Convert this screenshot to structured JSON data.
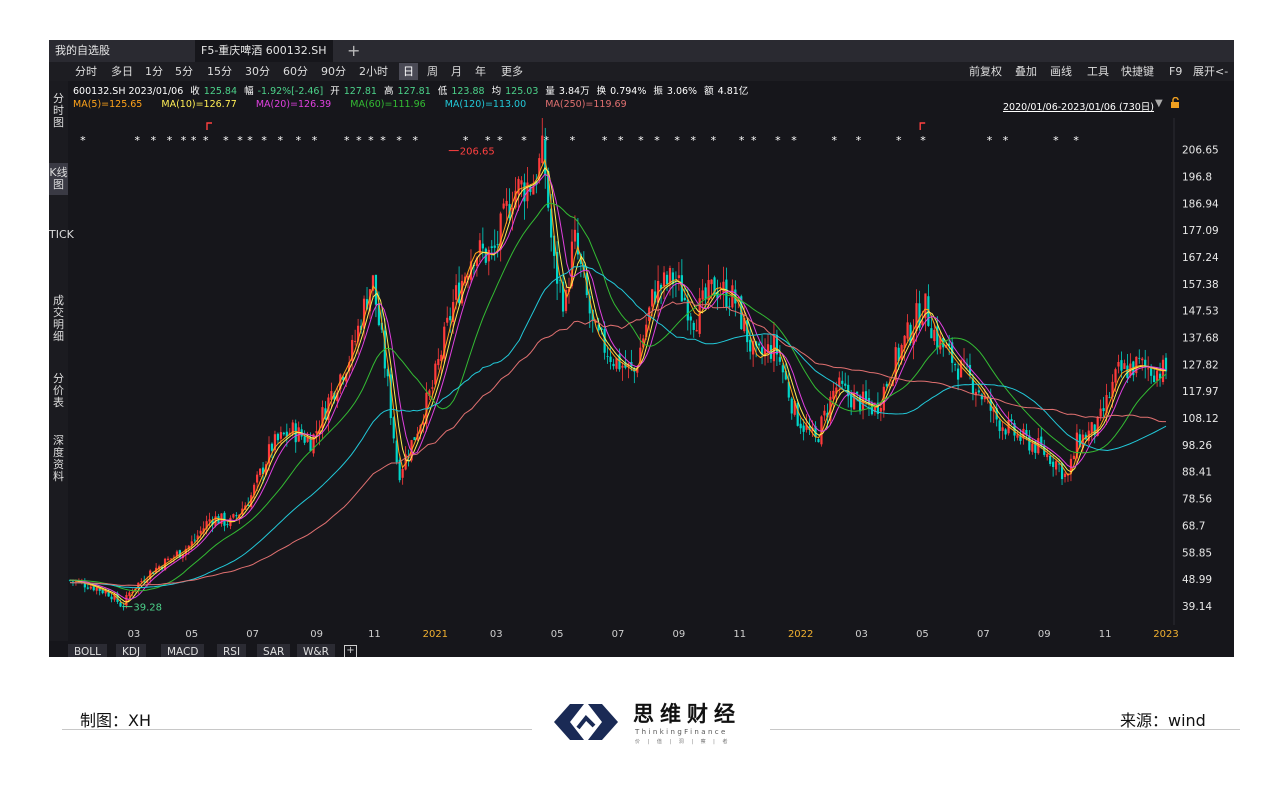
{
  "window": {
    "tabs": [
      {
        "label": "我的自选股",
        "active": false
      },
      {
        "label": "F5-重庆啤酒 600132.SH",
        "active": true
      }
    ],
    "add_tab_icon": "plus-icon"
  },
  "toolbar": {
    "periods": [
      "分时",
      "多日",
      "1分",
      "5分",
      "15分",
      "30分",
      "60分",
      "90分",
      "2小时",
      "日",
      "周",
      "月",
      "年",
      "更多"
    ],
    "active_period": "日",
    "right_tools": [
      "前复权",
      "叠加",
      "画线",
      "工具",
      "快捷键",
      "F9",
      "展开<-"
    ]
  },
  "sidebar": {
    "tabs": [
      {
        "label": "分时图",
        "active": false
      },
      {
        "label": "K线图",
        "active": true
      },
      {
        "label": "TICK",
        "active": false
      },
      {
        "label": "成交明细",
        "active": false
      },
      {
        "label": "分价表",
        "active": false
      },
      {
        "label": "深度资料",
        "active": false
      }
    ]
  },
  "quote": {
    "code_date": "600132.SH 2023/01/06",
    "close_label": "收",
    "close": "125.84",
    "change_label": "幅",
    "change": "-1.92%[-2.46]",
    "open_label": "开",
    "open": "127.81",
    "high_label": "高",
    "high": "127.81",
    "low_label": "低",
    "low": "123.88",
    "avg_label": "均",
    "avg": "125.03",
    "volume_label": "量",
    "volume": "3.84万",
    "turnover_label": "换",
    "turnover": "0.794%",
    "amplitude_label": "振",
    "amplitude": "3.06%",
    "amount_label": "额",
    "amount": "4.81亿"
  },
  "ma_legend": [
    {
      "label": "MA(5)=125.65",
      "color": "#ffa31a"
    },
    {
      "label": "MA(10)=126.77",
      "color": "#ffee55"
    },
    {
      "label": "MA(20)=126.39",
      "color": "#e040e0"
    },
    {
      "label": "MA(60)=111.96",
      "color": "#33bb33"
    },
    {
      "label": "MA(120)=113.00",
      "color": "#22c8d8"
    },
    {
      "label": "MA(250)=119.69",
      "color": "#e07070"
    }
  ],
  "date_range": "2020/01/06-2023/01/06 (730日)",
  "colors": {
    "up": "#ff3b3b",
    "down": "#00d6c8",
    "background": "#16161b"
  },
  "chart_data": {
    "type": "candlestick",
    "x_ticks": [
      {
        "label": "03",
        "year": false
      },
      {
        "label": "05",
        "year": false
      },
      {
        "label": "07",
        "year": false
      },
      {
        "label": "09",
        "year": false
      },
      {
        "label": "11",
        "year": false
      },
      {
        "label": "2021",
        "year": true
      },
      {
        "label": "03",
        "year": false
      },
      {
        "label": "05",
        "year": false
      },
      {
        "label": "07",
        "year": false
      },
      {
        "label": "09",
        "year": false
      },
      {
        "label": "11",
        "year": false
      },
      {
        "label": "2022",
        "year": true
      },
      {
        "label": "03",
        "year": false
      },
      {
        "label": "05",
        "year": false
      },
      {
        "label": "07",
        "year": false
      },
      {
        "label": "09",
        "year": false
      },
      {
        "label": "11",
        "year": false
      },
      {
        "label": "2023",
        "year": true
      }
    ],
    "y_ticks": [
      "206.65",
      "196.8",
      "186.94",
      "177.09",
      "167.24",
      "157.38",
      "147.53",
      "137.68",
      "127.82",
      "117.97",
      "108.12",
      "98.26",
      "88.41",
      "78.56",
      "68.7",
      "58.85",
      "48.99",
      "39.14"
    ],
    "ylim": [
      34,
      212
    ],
    "annotations": [
      {
        "label": "39.28",
        "month": 2.6,
        "value": 39.28,
        "color": "#4cd28a"
      },
      {
        "label": "206.65",
        "month": 18.8,
        "value": 206.65,
        "color": "#ff4040"
      }
    ],
    "close_path": [
      [
        0,
        49
      ],
      [
        1,
        47
      ],
      [
        2,
        44
      ],
      [
        2.6,
        39.3
      ],
      [
        3,
        45
      ],
      [
        4,
        52
      ],
      [
        5,
        57
      ],
      [
        6,
        62
      ],
      [
        7,
        72
      ],
      [
        8,
        70
      ],
      [
        9,
        80
      ],
      [
        10,
        98
      ],
      [
        11,
        104
      ],
      [
        12,
        100
      ],
      [
        13,
        118
      ],
      [
        14,
        133
      ],
      [
        15,
        160
      ],
      [
        15.7,
        125
      ],
      [
        16.3,
        88
      ],
      [
        17,
        100
      ],
      [
        18,
        120
      ],
      [
        19,
        150
      ],
      [
        20,
        170
      ],
      [
        21,
        168
      ],
      [
        22,
        192
      ],
      [
        23,
        195
      ],
      [
        23.5,
        206
      ],
      [
        24,
        165
      ],
      [
        24.6,
        150
      ],
      [
        25,
        175
      ],
      [
        26,
        140
      ],
      [
        27,
        130
      ],
      [
        28,
        125
      ],
      [
        29,
        155
      ],
      [
        30,
        160
      ],
      [
        31,
        145
      ],
      [
        32,
        157
      ],
      [
        33,
        152
      ],
      [
        34,
        130
      ],
      [
        35,
        135
      ],
      [
        36,
        110
      ],
      [
        37,
        100
      ],
      [
        38,
        120
      ],
      [
        39,
        115
      ],
      [
        40,
        112
      ],
      [
        41,
        130
      ],
      [
        42,
        145
      ],
      [
        42.4,
        150
      ],
      [
        43,
        138
      ],
      [
        44,
        128
      ],
      [
        45,
        120
      ],
      [
        46,
        108
      ],
      [
        47,
        102
      ],
      [
        48,
        98
      ],
      [
        49,
        92
      ],
      [
        49.5,
        86
      ],
      [
        50,
        100
      ],
      [
        51,
        105
      ],
      [
        52,
        125
      ],
      [
        53,
        128
      ],
      [
        54,
        125.84
      ]
    ],
    "ma_series": [
      {
        "name": "MA(5)",
        "lag": 0.3,
        "color": "#ffa31a"
      },
      {
        "name": "MA(10)",
        "lag": 0.6,
        "color": "#ffee55"
      },
      {
        "name": "MA(20)",
        "lag": 1.0,
        "color": "#e040e0"
      },
      {
        "name": "MA(60)",
        "lag": 3.0,
        "color": "#33bb33"
      },
      {
        "name": "MA(120)",
        "lag": 6.0,
        "color": "#22c8d8"
      },
      {
        "name": "MA(250)",
        "lag": 11.0,
        "color": "#e07070"
      }
    ]
  },
  "footer": {
    "left": "制图：XH",
    "right": "来源：wind",
    "logo_title": "思维财经",
    "logo_sub": "ThinkingFinance",
    "logo_sub2": "价 | 值 | 洞 | 察 | 者"
  }
}
